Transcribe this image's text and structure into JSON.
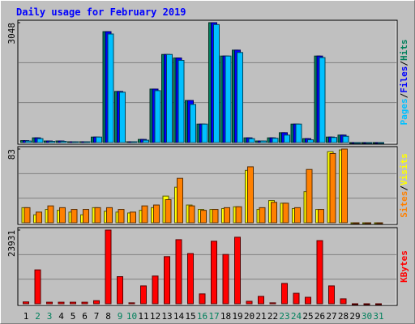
{
  "title": "Daily usage for February 2019",
  "legend_separator": "/",
  "categories": [
    "1",
    "2",
    "3",
    "4",
    "5",
    "6",
    "7",
    "8",
    "9",
    "10",
    "11",
    "12",
    "13",
    "14",
    "15",
    "16",
    "17",
    "18",
    "19",
    "20",
    "21",
    "22",
    "23",
    "24",
    "25",
    "26",
    "27",
    "28",
    "29",
    "30",
    "31"
  ],
  "category_colors": [
    "#000000",
    "#00805c",
    "#00805c",
    "#000000",
    "#000000",
    "#000000",
    "#000000",
    "#000000",
    "#00805c",
    "#00805c",
    "#000000",
    "#000000",
    "#000000",
    "#000000",
    "#000000",
    "#00805c",
    "#00805c",
    "#000000",
    "#000000",
    "#000000",
    "#000000",
    "#000000",
    "#00805c",
    "#00805c",
    "#000000",
    "#000000",
    "#000000",
    "#000000",
    "#000000",
    "#00805c",
    "#00805c"
  ],
  "chart_data": [
    {
      "type": "bar",
      "ylim": [
        0,
        3048
      ],
      "yticks": [
        3048
      ],
      "grid": true,
      "series": [
        {
          "name": "Hits",
          "color": "#00805c",
          "values": [
            50,
            120,
            40,
            40,
            20,
            20,
            140,
            2820,
            1300,
            20,
            80,
            1360,
            2240,
            2150,
            1070,
            470,
            3048,
            2200,
            2350,
            120,
            40,
            120,
            250,
            470,
            100,
            2200,
            140,
            190,
            0,
            0,
            0
          ]
        },
        {
          "name": "Files",
          "color": "#0000ff",
          "values": [
            50,
            120,
            40,
            40,
            20,
            20,
            140,
            2820,
            1300,
            20,
            80,
            1360,
            2240,
            2150,
            1070,
            470,
            3048,
            2200,
            2350,
            120,
            40,
            120,
            250,
            470,
            100,
            2200,
            140,
            190,
            0,
            0,
            0
          ]
        },
        {
          "name": "Pages",
          "color": "#00c0ff",
          "values": [
            40,
            100,
            30,
            30,
            20,
            20,
            140,
            2760,
            1280,
            20,
            60,
            1320,
            2240,
            2090,
            970,
            470,
            3000,
            2200,
            2290,
            100,
            40,
            110,
            190,
            470,
            70,
            2160,
            130,
            160,
            0,
            0,
            0
          ]
        }
      ]
    },
    {
      "type": "bar",
      "ylim": [
        0,
        83
      ],
      "yticks": [
        83
      ],
      "grid": true,
      "series": [
        {
          "name": "Visits",
          "color": "#ffff00",
          "values": [
            17,
            9,
            15,
            14,
            12,
            9,
            17,
            13,
            12,
            11,
            14,
            17,
            30,
            40,
            20,
            15,
            15,
            16,
            18,
            59,
            15,
            25,
            22,
            16,
            35,
            15,
            80,
            82,
            0,
            0,
            0
          ]
        },
        {
          "name": "Sites",
          "color": "#ff8000",
          "values": [
            17,
            12,
            19,
            17,
            15,
            15,
            17,
            17,
            15,
            12,
            19,
            20,
            26,
            50,
            19,
            14,
            15,
            17,
            18,
            63,
            17,
            23,
            22,
            17,
            60,
            15,
            78,
            83,
            0,
            0,
            0
          ]
        }
      ]
    },
    {
      "type": "bar",
      "ylim": [
        0,
        23931
      ],
      "yticks": [
        23931
      ],
      "grid": true,
      "series": [
        {
          "name": "KBytes",
          "color": "#ff0000",
          "values": [
            600,
            11000,
            500,
            500,
            500,
            500,
            1000,
            23931,
            8800,
            300,
            5800,
            9000,
            15300,
            20800,
            16300,
            3200,
            20300,
            16000,
            21600,
            800,
            2400,
            300,
            6600,
            3400,
            2100,
            20500,
            5800,
            1600,
            0,
            0,
            0
          ]
        }
      ]
    }
  ]
}
